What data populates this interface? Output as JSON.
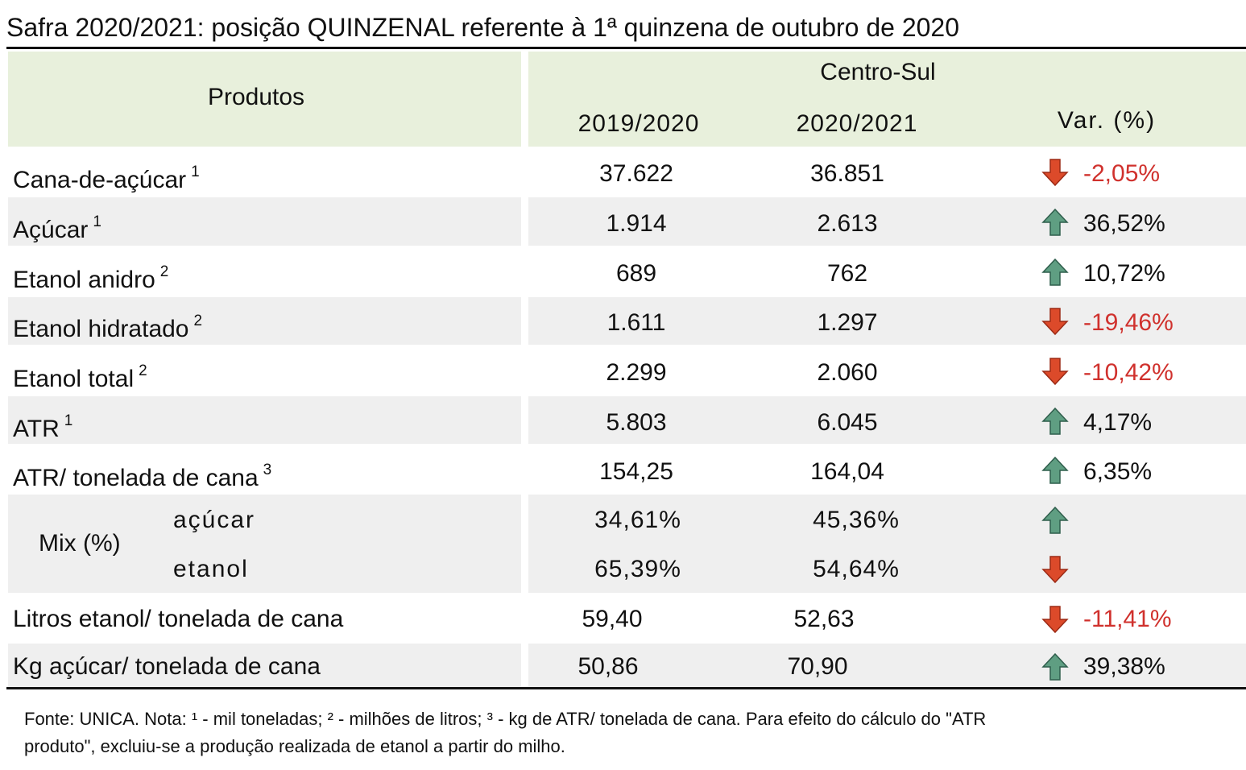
{
  "title": "Safra 2020/2021: posição QUINZENAL referente à 1ª quinzena de outubro de 2020",
  "header": {
    "products": "Produtos",
    "region": "Centro-Sul",
    "col1": "2019/2020",
    "col2": "2020/2021",
    "col3": "Var. (%)"
  },
  "rows": [
    {
      "name": "Cana-de-açúcar",
      "note": "1",
      "v1": "37.622",
      "v2": "36.851",
      "var": "-2,05%"
    },
    {
      "name": "Açúcar",
      "note": "1",
      "v1": "1.914",
      "v2": "2.613",
      "var": "36,52%"
    },
    {
      "name": "Etanol anidro",
      "note": "2",
      "v1": "689",
      "v2": "762",
      "var": "10,72%"
    },
    {
      "name": "Etanol hidratado",
      "note": "2",
      "v1": "1.611",
      "v2": "1.297",
      "var": "-19,46%"
    },
    {
      "name": "Etanol total",
      "note": "2",
      "v1": "2.299",
      "v2": "2.060",
      "var": "-10,42%"
    },
    {
      "name": "ATR",
      "note": "1",
      "v1": "5.803",
      "v2": "6.045",
      "var": "4,17%"
    },
    {
      "name": "ATR/ tonelada de cana",
      "note": "3",
      "v1": "154,25",
      "v2": "164,04",
      "var": "6,35%"
    }
  ],
  "mix": {
    "label": "Mix (%)",
    "items": [
      {
        "name": "açúcar",
        "v1": "34,61%",
        "v2": "45,36%"
      },
      {
        "name": "etanol",
        "v1": "65,39%",
        "v2": "54,64%"
      }
    ]
  },
  "rows2": [
    {
      "name": "Litros etanol/ tonelada de cana",
      "v1": "59,40",
      "v2": "52,63",
      "var": "-11,41%"
    },
    {
      "name": "Kg açúcar/ tonelada de cana",
      "v1": "50,86",
      "v2": "70,90",
      "var": "39,38%"
    }
  ],
  "footnote": {
    "line1": "Fonte: UNICA. Nota: ¹ - mil toneladas; ² - milhões de litros; ³ - kg de ATR/ tonelada de cana. Para efeito do cálculo do \"ATR",
    "line2": "produto\", excluiu-se a produção realizada de etanol a partir do milho."
  }
}
